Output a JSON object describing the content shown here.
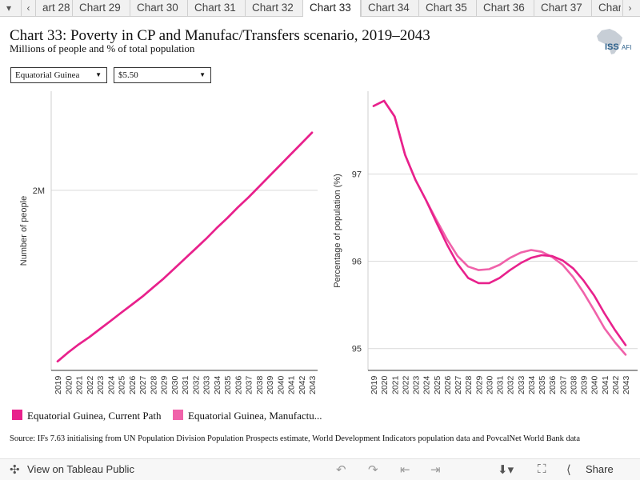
{
  "tabs": {
    "items": [
      "art 28",
      "Chart 29",
      "Chart 30",
      "Chart 31",
      "Chart 32",
      "Chart 33",
      "Chart 34",
      "Chart 35",
      "Chart 36",
      "Chart 37",
      "Char"
    ],
    "active_index": 5,
    "menu_glyph": "▾",
    "prev_glyph": "‹",
    "next_glyph": "›"
  },
  "header": {
    "title": "Chart 33: Poverty in CP and Manufac/Transfers scenario, 2019–2043",
    "subtitle": "Millions of people and % of total population"
  },
  "logo": {
    "text_iss": "ISS",
    "text_afi": "AFI",
    "icon": "africa-map-icon"
  },
  "filters": {
    "country": "Equatorial Guinea",
    "threshold": "$5.50"
  },
  "colors": {
    "current_path": "#e8218c",
    "manufacturing": "#f062aa",
    "grid": "#d9d9d9"
  },
  "chart_data": [
    {
      "type": "line",
      "ylabel": "Number of people",
      "x": [
        2019,
        2020,
        2021,
        2022,
        2023,
        2024,
        2025,
        2026,
        2027,
        2028,
        2029,
        2030,
        2031,
        2032,
        2033,
        2034,
        2035,
        2036,
        2037,
        2038,
        2039,
        2040,
        2041,
        2042,
        2043
      ],
      "yticks": [
        {
          "value": 2.0,
          "label": "2M"
        }
      ],
      "ylim": [
        1.0,
        2.55
      ],
      "series": [
        {
          "name": "Equatorial Guinea, Current Path",
          "values": [
            1.05,
            1.1,
            1.145,
            1.185,
            1.23,
            1.275,
            1.32,
            1.365,
            1.41,
            1.46,
            1.51,
            1.565,
            1.62,
            1.675,
            1.73,
            1.79,
            1.845,
            1.905,
            1.96,
            2.02,
            2.08,
            2.14,
            2.2,
            2.26,
            2.32
          ]
        },
        {
          "name": "Equatorial Guinea, Manufactu...",
          "values": [
            1.05,
            1.1,
            1.145,
            1.185,
            1.23,
            1.275,
            1.32,
            1.365,
            1.41,
            1.46,
            1.51,
            1.565,
            1.62,
            1.675,
            1.73,
            1.79,
            1.845,
            1.905,
            1.96,
            2.02,
            2.08,
            2.14,
            2.2,
            2.26,
            2.32
          ]
        }
      ]
    },
    {
      "type": "line",
      "ylabel": "Percentage of population (%)",
      "x": [
        2019,
        2020,
        2021,
        2022,
        2023,
        2024,
        2025,
        2026,
        2027,
        2028,
        2029,
        2030,
        2031,
        2032,
        2033,
        2034,
        2035,
        2036,
        2037,
        2038,
        2039,
        2040,
        2041,
        2042,
        2043
      ],
      "yticks": [
        {
          "value": 95,
          "label": "95"
        },
        {
          "value": 96,
          "label": "96"
        },
        {
          "value": 97,
          "label": "97"
        }
      ],
      "ylim": [
        94.75,
        97.95
      ],
      "series": [
        {
          "name": "Equatorial Guinea, Current Path",
          "values": [
            97.78,
            97.84,
            97.66,
            97.22,
            96.93,
            96.7,
            96.44,
            96.19,
            95.97,
            95.81,
            95.75,
            95.75,
            95.81,
            95.9,
            95.98,
            96.04,
            96.07,
            96.06,
            96.01,
            95.92,
            95.78,
            95.61,
            95.4,
            95.21,
            95.04
          ]
        },
        {
          "name": "Equatorial Guinea, Manufactu...",
          "values": [
            97.78,
            97.84,
            97.66,
            97.22,
            96.93,
            96.7,
            96.47,
            96.25,
            96.06,
            95.94,
            95.9,
            95.91,
            95.96,
            96.04,
            96.1,
            96.13,
            96.11,
            96.05,
            95.96,
            95.82,
            95.64,
            95.44,
            95.23,
            95.07,
            94.93
          ]
        }
      ]
    }
  ],
  "legend": [
    {
      "label": "Equatorial Guinea, Current Path"
    },
    {
      "label": "Equatorial Guinea, Manufactu..."
    }
  ],
  "source": "Source: IFs 7.63 initialising from UN Population Division Population Prospects estimate, World Development Indicators population data and PovcalNet World Bank data",
  "footer": {
    "view_label": "View on Tableau Public",
    "share_label": "Share",
    "icons": [
      "tableau-logo-icon",
      "undo-icon",
      "redo-icon",
      "revert-icon",
      "forward-icon",
      "download-icon",
      "fullscreen-icon",
      "share-icon"
    ]
  }
}
